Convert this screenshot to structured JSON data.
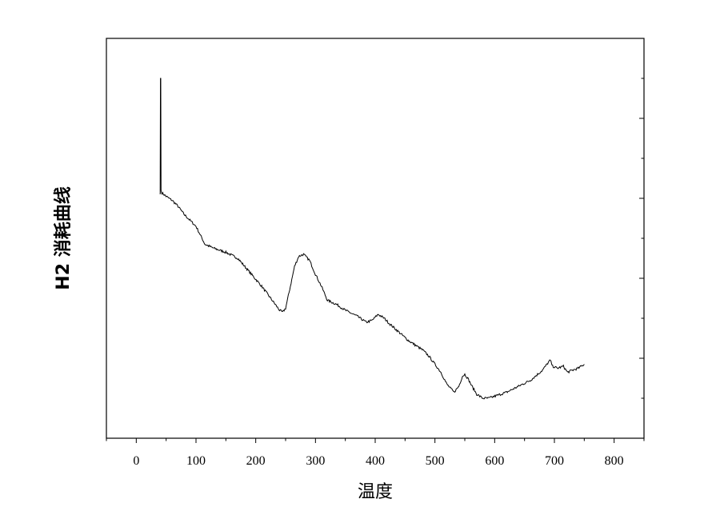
{
  "chart_data": {
    "type": "line",
    "xlabel": "温度",
    "ylabel": "H2 消耗曲线",
    "xlim": [
      -50,
      850
    ],
    "ylim": [
      0,
      10
    ],
    "xticks": [
      0,
      100,
      200,
      300,
      400,
      500,
      600,
      700,
      800
    ],
    "xtick_labels": [
      "0",
      "100",
      "200",
      "300",
      "400",
      "500",
      "600",
      "700",
      "800"
    ],
    "grid": false,
    "colors": {
      "line": "#000000",
      "axis": "#000000"
    },
    "series": [
      {
        "x": [
          40,
          40.5,
          41,
          41.5,
          42,
          50,
          60,
          70,
          80,
          90,
          100,
          105,
          110,
          115,
          130,
          150,
          170,
          190,
          210,
          225,
          240,
          245,
          250,
          258,
          265,
          272,
          280,
          290,
          300,
          310,
          320,
          335,
          350,
          370,
          385,
          395,
          405,
          415,
          425,
          440,
          455,
          470,
          480,
          490,
          500,
          510,
          520,
          532,
          540,
          546,
          550,
          555,
          562,
          570,
          580,
          590,
          600,
          620,
          640,
          660,
          680,
          690,
          693,
          697,
          705,
          715,
          722,
          730,
          740,
          750
        ],
        "values": [
          6.1,
          9.0,
          9.0,
          6.2,
          6.15,
          6.05,
          5.95,
          5.8,
          5.6,
          5.45,
          5.3,
          5.15,
          5.0,
          4.85,
          4.75,
          4.65,
          4.5,
          4.15,
          3.8,
          3.5,
          3.2,
          3.15,
          3.25,
          3.8,
          4.3,
          4.55,
          4.6,
          4.45,
          4.1,
          3.8,
          3.45,
          3.35,
          3.2,
          3.05,
          2.9,
          2.95,
          3.1,
          3.0,
          2.85,
          2.65,
          2.45,
          2.3,
          2.2,
          2.05,
          1.85,
          1.65,
          1.35,
          1.15,
          1.3,
          1.55,
          1.6,
          1.5,
          1.3,
          1.1,
          1.0,
          1.0,
          1.05,
          1.15,
          1.3,
          1.45,
          1.7,
          1.9,
          1.95,
          1.8,
          1.75,
          1.8,
          1.65,
          1.7,
          1.75,
          1.85
        ]
      }
    ]
  }
}
